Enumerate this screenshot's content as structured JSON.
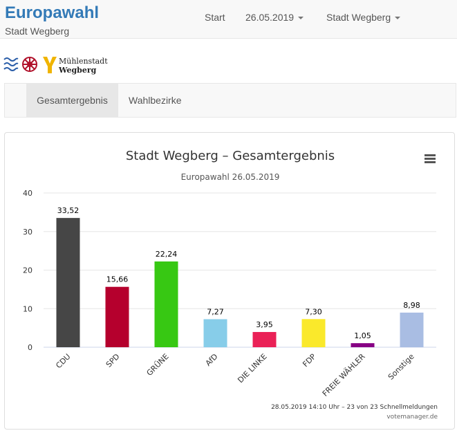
{
  "header": {
    "title": "Europawahl",
    "subtitle": "Stadt Wegberg",
    "nav": {
      "start": "Start",
      "date": "26.05.2019",
      "location": "Stadt Wegberg"
    }
  },
  "logo": {
    "line1": "Mühlenstadt",
    "line2": "Wegberg"
  },
  "tabs": [
    {
      "label": "Gesamtergebnis",
      "active": true
    },
    {
      "label": "Wahlbezirke",
      "active": false
    }
  ],
  "chart_data": {
    "type": "bar",
    "title": "Stadt Wegberg – Gesamtergebnis",
    "subtitle": "Europawahl 26.05.2019",
    "categories": [
      "CDU",
      "SPD",
      "GRÜNE",
      "AfD",
      "DIE LINKE",
      "FDP",
      "FREIE WÄHLER",
      "Sonstige"
    ],
    "values": [
      33.52,
      15.66,
      22.24,
      7.27,
      3.95,
      7.3,
      1.05,
      8.98
    ],
    "value_labels": [
      "33,52",
      "15,66",
      "22,24",
      "7,27",
      "3,95",
      "7,30",
      "1,05",
      "8,98"
    ],
    "colors": [
      "#464646",
      "#b5002d",
      "#37c813",
      "#87cde9",
      "#ea2157",
      "#fae92b",
      "#870084",
      "#a9bde3"
    ],
    "ylim": [
      0,
      40
    ],
    "yticks": [
      0,
      10,
      20,
      30,
      40
    ],
    "grid": true,
    "legend": "none",
    "footer": "28.05.2019 14:10 Uhr – 23 von 23 Schnellmeldungen",
    "credits": "votemanager.de"
  }
}
